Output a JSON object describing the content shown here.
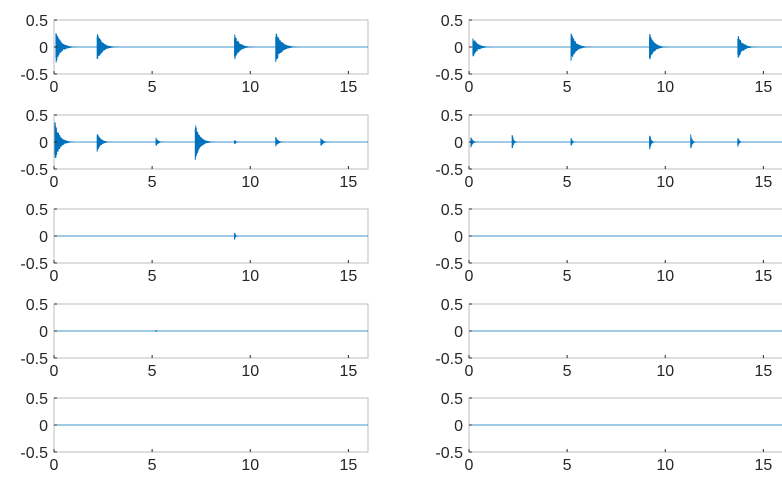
{
  "chart_data": [
    {
      "type": "line",
      "title": "",
      "xlabel": "",
      "ylabel": "",
      "xlim": [
        0,
        16
      ],
      "ylim": [
        -0.5,
        0.5
      ],
      "xticks": [
        "0",
        "5",
        "10",
        "15"
      ],
      "yticks": [
        "0.5",
        "0",
        "-0.5"
      ],
      "grid": false,
      "color": "#0072bd",
      "bursts": [
        {
          "t": 0.1,
          "amp": 0.3,
          "dur": 1.1
        },
        {
          "t": 2.2,
          "amp": 0.28,
          "dur": 1.1
        },
        {
          "t": 9.2,
          "amp": 0.26,
          "dur": 1.0
        },
        {
          "t": 11.3,
          "amp": 0.3,
          "dur": 1.2
        }
      ]
    },
    {
      "type": "line",
      "title": "",
      "xlabel": "",
      "ylabel": "",
      "xlim": [
        0,
        16
      ],
      "ylim": [
        -0.5,
        0.5
      ],
      "xticks": [
        "0",
        "5",
        "10",
        "15"
      ],
      "yticks": [
        "0.5",
        "0",
        "-0.5"
      ],
      "grid": false,
      "color": "#0072bd",
      "bursts": [
        {
          "t": 0.2,
          "amp": 0.2,
          "dur": 1.0
        },
        {
          "t": 5.2,
          "amp": 0.28,
          "dur": 1.0
        },
        {
          "t": 9.2,
          "amp": 0.26,
          "dur": 1.0
        },
        {
          "t": 13.7,
          "amp": 0.24,
          "dur": 1.0
        }
      ]
    },
    {
      "type": "line",
      "title": "",
      "xlabel": "",
      "ylabel": "",
      "xlim": [
        0,
        16
      ],
      "ylim": [
        -0.5,
        0.5
      ],
      "xticks": [
        "0",
        "5",
        "10",
        "15"
      ],
      "yticks": [
        "0.5",
        "0",
        "-0.5"
      ],
      "grid": false,
      "color": "#0072bd",
      "bursts": [
        {
          "t": 0.05,
          "amp": 0.38,
          "dur": 1.0
        },
        {
          "t": 2.2,
          "amp": 0.18,
          "dur": 0.8
        },
        {
          "t": 5.2,
          "amp": 0.08,
          "dur": 0.5
        },
        {
          "t": 7.2,
          "amp": 0.34,
          "dur": 1.0
        },
        {
          "t": 9.2,
          "amp": 0.05,
          "dur": 0.3
        },
        {
          "t": 11.3,
          "amp": 0.1,
          "dur": 0.5
        },
        {
          "t": 13.6,
          "amp": 0.08,
          "dur": 0.5
        }
      ]
    },
    {
      "type": "line",
      "title": "",
      "xlabel": "",
      "ylabel": "",
      "xlim": [
        0,
        16
      ],
      "ylim": [
        -0.5,
        0.5
      ],
      "xticks": [
        "0",
        "5",
        "10",
        "15"
      ],
      "yticks": [
        "0.5",
        "0",
        "-0.5"
      ],
      "grid": false,
      "color": "#0072bd",
      "bursts": [
        {
          "t": 0.1,
          "amp": 0.1,
          "dur": 0.4
        },
        {
          "t": 2.2,
          "amp": 0.15,
          "dur": 0.3
        },
        {
          "t": 5.2,
          "amp": 0.08,
          "dur": 0.3
        },
        {
          "t": 9.2,
          "amp": 0.17,
          "dur": 0.3
        },
        {
          "t": 11.3,
          "amp": 0.15,
          "dur": 0.3
        },
        {
          "t": 13.7,
          "amp": 0.09,
          "dur": 0.3
        }
      ]
    },
    {
      "type": "line",
      "title": "",
      "xlabel": "",
      "ylabel": "",
      "xlim": [
        0,
        16
      ],
      "ylim": [
        -0.5,
        0.5
      ],
      "xticks": [
        "0",
        "5",
        "10",
        "15"
      ],
      "yticks": [
        "0.5",
        "0",
        "-0.5"
      ],
      "grid": false,
      "color": "#0072bd",
      "bursts": [
        {
          "t": 9.2,
          "amp": 0.08,
          "dur": 0.2
        }
      ]
    },
    {
      "type": "line",
      "title": "",
      "xlabel": "",
      "ylabel": "",
      "xlim": [
        0,
        16
      ],
      "ylim": [
        -0.5,
        0.5
      ],
      "xticks": [
        "0",
        "5",
        "10",
        "15"
      ],
      "yticks": [
        "0.5",
        "0",
        "-0.5"
      ],
      "grid": false,
      "color": "#0072bd",
      "bursts": []
    },
    {
      "type": "line",
      "title": "",
      "xlabel": "",
      "ylabel": "",
      "xlim": [
        0,
        16
      ],
      "ylim": [
        -0.5,
        0.5
      ],
      "xticks": [
        "0",
        "5",
        "10",
        "15"
      ],
      "yticks": [
        "0.5",
        "0",
        "-0.5"
      ],
      "grid": false,
      "color": "#0072bd",
      "bursts": [
        {
          "t": 5.2,
          "amp": 0.02,
          "dur": 0.15
        }
      ]
    },
    {
      "type": "line",
      "title": "",
      "xlabel": "",
      "ylabel": "",
      "xlim": [
        0,
        16
      ],
      "ylim": [
        -0.5,
        0.5
      ],
      "xticks": [
        "0",
        "5",
        "10",
        "15"
      ],
      "yticks": [
        "0.5",
        "0",
        "-0.5"
      ],
      "grid": false,
      "color": "#0072bd",
      "bursts": []
    },
    {
      "type": "line",
      "title": "",
      "xlabel": "",
      "ylabel": "",
      "xlim": [
        0,
        16
      ],
      "ylim": [
        -0.5,
        0.5
      ],
      "xticks": [
        "0",
        "5",
        "10",
        "15"
      ],
      "yticks": [
        "0.5",
        "0",
        "-0.5"
      ],
      "grid": false,
      "color": "#0072bd",
      "bursts": []
    },
    {
      "type": "line",
      "title": "",
      "xlabel": "",
      "ylabel": "",
      "xlim": [
        0,
        16
      ],
      "ylim": [
        -0.5,
        0.5
      ],
      "xticks": [
        "0",
        "5",
        "10",
        "15"
      ],
      "yticks": [
        "0.5",
        "0",
        "-0.5"
      ],
      "grid": false,
      "color": "#0072bd",
      "bursts": []
    }
  ]
}
